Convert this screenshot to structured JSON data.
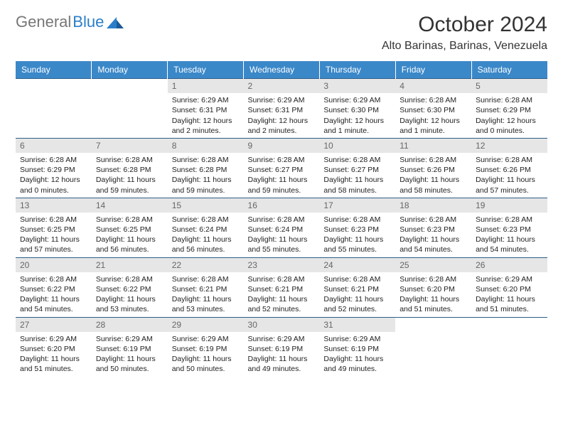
{
  "logo": {
    "part1": "General",
    "part2": "Blue"
  },
  "title": "October 2024",
  "location": "Alto Barinas, Barinas, Venezuela",
  "colors": {
    "header_bg": "#3b88c9",
    "header_fg": "#ffffff",
    "daynum_bg": "#e6e6e6",
    "daynum_fg": "#666666",
    "border": "#2b5f8a",
    "text": "#222222"
  },
  "dow": [
    "Sunday",
    "Monday",
    "Tuesday",
    "Wednesday",
    "Thursday",
    "Friday",
    "Saturday"
  ],
  "weeks": [
    [
      null,
      null,
      {
        "n": "1",
        "sr": "6:29 AM",
        "ss": "6:31 PM",
        "dl": "12 hours and 2 minutes."
      },
      {
        "n": "2",
        "sr": "6:29 AM",
        "ss": "6:31 PM",
        "dl": "12 hours and 2 minutes."
      },
      {
        "n": "3",
        "sr": "6:29 AM",
        "ss": "6:30 PM",
        "dl": "12 hours and 1 minute."
      },
      {
        "n": "4",
        "sr": "6:28 AM",
        "ss": "6:30 PM",
        "dl": "12 hours and 1 minute."
      },
      {
        "n": "5",
        "sr": "6:28 AM",
        "ss": "6:29 PM",
        "dl": "12 hours and 0 minutes."
      }
    ],
    [
      {
        "n": "6",
        "sr": "6:28 AM",
        "ss": "6:29 PM",
        "dl": "12 hours and 0 minutes."
      },
      {
        "n": "7",
        "sr": "6:28 AM",
        "ss": "6:28 PM",
        "dl": "11 hours and 59 minutes."
      },
      {
        "n": "8",
        "sr": "6:28 AM",
        "ss": "6:28 PM",
        "dl": "11 hours and 59 minutes."
      },
      {
        "n": "9",
        "sr": "6:28 AM",
        "ss": "6:27 PM",
        "dl": "11 hours and 59 minutes."
      },
      {
        "n": "10",
        "sr": "6:28 AM",
        "ss": "6:27 PM",
        "dl": "11 hours and 58 minutes."
      },
      {
        "n": "11",
        "sr": "6:28 AM",
        "ss": "6:26 PM",
        "dl": "11 hours and 58 minutes."
      },
      {
        "n": "12",
        "sr": "6:28 AM",
        "ss": "6:26 PM",
        "dl": "11 hours and 57 minutes."
      }
    ],
    [
      {
        "n": "13",
        "sr": "6:28 AM",
        "ss": "6:25 PM",
        "dl": "11 hours and 57 minutes."
      },
      {
        "n": "14",
        "sr": "6:28 AM",
        "ss": "6:25 PM",
        "dl": "11 hours and 56 minutes."
      },
      {
        "n": "15",
        "sr": "6:28 AM",
        "ss": "6:24 PM",
        "dl": "11 hours and 56 minutes."
      },
      {
        "n": "16",
        "sr": "6:28 AM",
        "ss": "6:24 PM",
        "dl": "11 hours and 55 minutes."
      },
      {
        "n": "17",
        "sr": "6:28 AM",
        "ss": "6:23 PM",
        "dl": "11 hours and 55 minutes."
      },
      {
        "n": "18",
        "sr": "6:28 AM",
        "ss": "6:23 PM",
        "dl": "11 hours and 54 minutes."
      },
      {
        "n": "19",
        "sr": "6:28 AM",
        "ss": "6:23 PM",
        "dl": "11 hours and 54 minutes."
      }
    ],
    [
      {
        "n": "20",
        "sr": "6:28 AM",
        "ss": "6:22 PM",
        "dl": "11 hours and 54 minutes."
      },
      {
        "n": "21",
        "sr": "6:28 AM",
        "ss": "6:22 PM",
        "dl": "11 hours and 53 minutes."
      },
      {
        "n": "22",
        "sr": "6:28 AM",
        "ss": "6:21 PM",
        "dl": "11 hours and 53 minutes."
      },
      {
        "n": "23",
        "sr": "6:28 AM",
        "ss": "6:21 PM",
        "dl": "11 hours and 52 minutes."
      },
      {
        "n": "24",
        "sr": "6:28 AM",
        "ss": "6:21 PM",
        "dl": "11 hours and 52 minutes."
      },
      {
        "n": "25",
        "sr": "6:28 AM",
        "ss": "6:20 PM",
        "dl": "11 hours and 51 minutes."
      },
      {
        "n": "26",
        "sr": "6:29 AM",
        "ss": "6:20 PM",
        "dl": "11 hours and 51 minutes."
      }
    ],
    [
      {
        "n": "27",
        "sr": "6:29 AM",
        "ss": "6:20 PM",
        "dl": "11 hours and 51 minutes."
      },
      {
        "n": "28",
        "sr": "6:29 AM",
        "ss": "6:19 PM",
        "dl": "11 hours and 50 minutes."
      },
      {
        "n": "29",
        "sr": "6:29 AM",
        "ss": "6:19 PM",
        "dl": "11 hours and 50 minutes."
      },
      {
        "n": "30",
        "sr": "6:29 AM",
        "ss": "6:19 PM",
        "dl": "11 hours and 49 minutes."
      },
      {
        "n": "31",
        "sr": "6:29 AM",
        "ss": "6:19 PM",
        "dl": "11 hours and 49 minutes."
      },
      null,
      null
    ]
  ],
  "labels": {
    "sunrise": "Sunrise:",
    "sunset": "Sunset:",
    "daylight": "Daylight:"
  }
}
